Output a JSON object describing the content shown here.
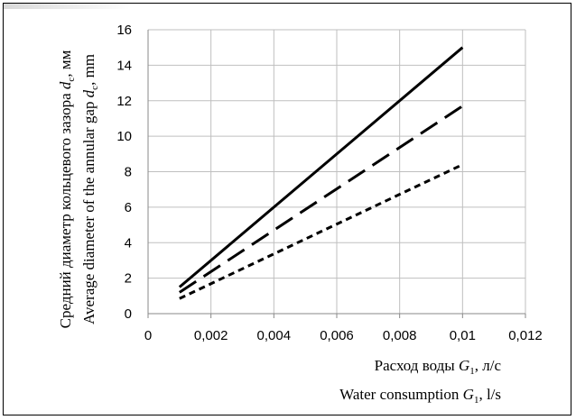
{
  "chart_data": {
    "type": "line",
    "title": "",
    "xlabel": {
      "line1": {
        "prefix": "Расход воды ",
        "var": "G",
        "sub": "1",
        "suffix": ", л/с"
      },
      "line2": {
        "prefix": "Water consumption ",
        "var": "G",
        "sub": "1",
        "suffix": ", l/s"
      }
    },
    "ylabel": {
      "line1": {
        "prefix": "Средний диаметр кольцевого зазора ",
        "var": "d",
        "sub": "c",
        "suffix": ", мм"
      },
      "line2": {
        "prefix": "Average diameter of the annular gap ",
        "var": "d",
        "sub": "c",
        "suffix": ", mm"
      }
    },
    "xlim": [
      0,
      0.012
    ],
    "ylim": [
      0,
      16
    ],
    "x_ticks": [
      "0",
      "0,002",
      "0,004",
      "0,006",
      "0,008",
      "0,01",
      "0,012"
    ],
    "y_ticks": [
      "0",
      "2",
      "4",
      "6",
      "8",
      "10",
      "12",
      "14",
      "16"
    ],
    "grid": true,
    "series": [
      {
        "style": "solid",
        "x": [
          0.001,
          0.01
        ],
        "y": [
          1.5,
          15.0
        ]
      },
      {
        "style": "long-dash",
        "x": [
          0.001,
          0.01
        ],
        "y": [
          1.2,
          11.7
        ]
      },
      {
        "style": "short-dash",
        "x": [
          0.001,
          0.01
        ],
        "y": [
          0.85,
          8.4
        ]
      }
    ]
  }
}
